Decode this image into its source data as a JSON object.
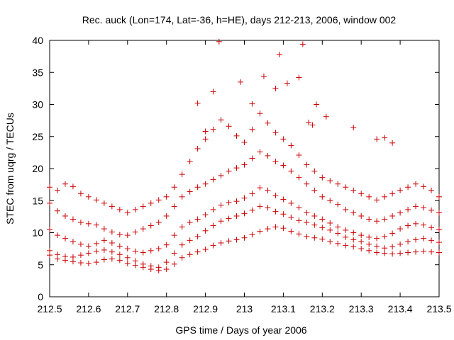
{
  "chart_data": {
    "type": "scatter",
    "title": "Rec. auck (Lon=174, Lat=-36, h=HE), days 212-213, 2006, window 002",
    "xlabel": "GPS time / Days of year 2006",
    "ylabel": "STEC from uqrg / TECUs",
    "xlim": [
      212.5,
      213.5
    ],
    "ylim": [
      0,
      40
    ],
    "xticks": [
      "212.5",
      "212.6",
      "212.7",
      "212.8",
      "212.9",
      "213",
      "213.1",
      "213.2",
      "213.3",
      "213.4",
      "213.5"
    ],
    "yticks": [
      "0",
      "5",
      "10",
      "15",
      "20",
      "25",
      "30",
      "35",
      "40"
    ],
    "grid": false,
    "legend": "none",
    "marker": "plus",
    "color": "#cc0000",
    "series": [
      {
        "x": [
          212.5,
          212.52,
          212.54,
          212.56,
          212.58,
          212.6,
          212.62,
          212.64,
          212.66,
          212.68,
          212.7,
          212.72,
          212.74,
          212.76,
          212.78,
          212.8,
          212.82,
          212.84,
          212.86,
          212.88,
          212.9,
          212.92,
          212.94,
          212.96,
          212.98,
          213.0,
          213.02,
          213.04,
          213.06,
          213.08,
          213.1,
          213.12,
          213.14,
          213.16,
          213.18,
          213.2,
          213.22,
          213.24,
          213.26,
          213.28,
          213.3,
          213.32,
          213.34,
          213.36,
          213.38,
          213.4,
          213.42,
          213.44,
          213.46,
          213.48,
          213.5
        ],
        "y": [
          6.5,
          5.9,
          5.7,
          5.5,
          5.3,
          5.2,
          5.4,
          5.8,
          5.9,
          5.7,
          5.2,
          4.9,
          4.6,
          4.3,
          4.1,
          4.3,
          5.1,
          6.1,
          6.6,
          7.0,
          7.4,
          8.0,
          8.4,
          8.7,
          8.9,
          9.2,
          9.7,
          10.2,
          10.6,
          10.9,
          10.7,
          10.2,
          9.8,
          9.4,
          9.2,
          9.0,
          8.6,
          8.3,
          8.0,
          7.8,
          7.5,
          7.2,
          6.9,
          6.8,
          6.7,
          6.8,
          6.9,
          7.0,
          7.1,
          7.0,
          6.9
        ]
      },
      {
        "x": [
          212.5,
          212.52,
          212.54,
          212.56,
          212.58,
          212.6,
          212.62,
          212.64,
          212.66,
          212.68,
          212.7,
          212.72,
          212.74,
          212.76,
          212.78,
          212.8,
          212.82,
          212.84,
          212.86,
          212.88,
          212.9,
          212.92,
          212.94,
          212.96,
          212.98,
          213.0,
          213.02,
          213.04,
          213.06,
          213.08,
          213.1,
          213.12,
          213.14,
          213.16,
          213.18,
          213.2,
          213.22,
          213.24,
          213.26,
          213.28,
          213.3,
          213.32,
          213.34,
          213.36,
          213.38,
          213.4,
          213.42,
          213.44,
          213.46,
          213.48,
          213.5
        ],
        "y": [
          7.2,
          6.6,
          6.3,
          6.2,
          6.5,
          6.8,
          7.1,
          7.3,
          7.0,
          6.6,
          6.1,
          5.6,
          5.1,
          4.8,
          4.6,
          5.4,
          6.8,
          8.1,
          8.8,
          9.4,
          10.3,
          11.1,
          11.8,
          12.2,
          12.6,
          13.0,
          13.5,
          14.1,
          13.9,
          13.3,
          12.9,
          12.4,
          11.9,
          11.6,
          11.2,
          10.8,
          10.4,
          9.9,
          9.3,
          8.9,
          8.6,
          8.2,
          7.9,
          7.6,
          7.8,
          8.2,
          8.6,
          8.9,
          9.1,
          8.8,
          8.5
        ]
      },
      {
        "x": [
          212.5,
          212.52,
          212.54,
          212.56,
          212.58,
          212.6,
          212.62,
          212.64,
          212.66,
          212.68,
          212.7,
          212.72,
          212.74,
          212.76,
          212.78,
          212.8,
          212.82,
          212.84,
          212.86,
          212.88,
          212.9,
          212.92,
          212.94,
          212.96,
          212.98,
          213.0,
          213.02,
          213.04,
          213.06,
          213.08,
          213.1,
          213.12,
          213.14,
          213.16,
          213.18,
          213.2,
          213.22,
          213.24,
          213.26,
          213.28,
          213.3,
          213.32,
          213.34,
          213.36,
          213.38,
          213.4,
          213.42,
          213.44,
          213.46,
          213.48,
          213.5
        ],
        "y": [
          10.5,
          9.6,
          9.1,
          8.6,
          8.2,
          7.9,
          8.3,
          8.8,
          8.4,
          7.9,
          7.5,
          7.1,
          6.9,
          7.2,
          7.5,
          8.1,
          9.6,
          10.9,
          11.6,
          12.1,
          12.8,
          13.6,
          14.3,
          14.7,
          14.9,
          15.4,
          16.1,
          17.0,
          16.6,
          15.8,
          15.2,
          14.6,
          13.9,
          13.1,
          12.6,
          12.1,
          11.5,
          10.9,
          10.4,
          10.0,
          9.6,
          9.3,
          9.1,
          9.4,
          9.9,
          10.6,
          11.1,
          11.4,
          11.2,
          10.8,
          10.5
        ]
      },
      {
        "x": [
          212.5,
          212.52,
          212.54,
          212.56,
          212.58,
          212.6,
          212.62,
          212.64,
          212.66,
          212.68,
          212.7,
          212.72,
          212.74,
          212.76,
          212.78,
          212.8,
          212.82,
          212.84,
          212.86,
          212.88,
          212.9,
          212.92,
          212.94,
          212.96,
          212.98,
          213.0,
          213.02,
          213.04,
          213.06,
          213.08,
          213.1,
          213.12,
          213.14,
          213.16,
          213.18,
          213.2,
          213.22,
          213.24,
          213.26,
          213.28,
          213.3,
          213.32,
          213.34,
          213.36,
          213.38,
          213.4,
          213.42,
          213.44,
          213.46,
          213.48,
          213.5
        ],
        "y": [
          14.6,
          13.4,
          12.6,
          12.1,
          11.6,
          11.4,
          11.2,
          10.6,
          10.1,
          9.7,
          9.6,
          10.1,
          10.6,
          11.1,
          11.6,
          12.6,
          14.1,
          15.6,
          16.4,
          17.1,
          17.6,
          18.3,
          18.9,
          19.6,
          20.1,
          20.6,
          21.6,
          22.6,
          22.0,
          21.1,
          20.5,
          19.6,
          18.6,
          17.6,
          16.6,
          15.6,
          15.0,
          14.4,
          13.6,
          13.1,
          12.6,
          12.1,
          11.8,
          12.1,
          12.6,
          13.1,
          13.6,
          14.1,
          13.9,
          13.5,
          13.1
        ]
      },
      {
        "x": [
          212.5,
          212.52,
          212.54,
          212.56,
          212.58,
          212.6,
          212.62,
          212.64,
          212.66,
          212.68,
          212.7,
          212.72,
          212.74,
          212.76,
          212.78,
          212.8,
          212.82,
          212.84,
          212.86,
          212.88,
          212.9,
          212.92,
          212.94,
          212.96,
          212.98,
          213.0,
          213.02,
          213.04,
          213.06,
          213.08,
          213.1,
          213.12,
          213.14,
          213.16,
          213.18,
          213.2,
          213.22,
          213.24,
          213.26,
          213.28,
          213.3,
          213.32,
          213.34,
          213.36,
          213.38,
          213.4,
          213.42,
          213.44,
          213.46,
          213.48,
          213.5
        ],
        "y": [
          17.1,
          16.6,
          17.6,
          17.2,
          16.1,
          15.6,
          15.1,
          14.6,
          14.1,
          13.6,
          13.1,
          13.6,
          14.1,
          14.6,
          15.1,
          15.6,
          17.1,
          19.1,
          21.1,
          23.1,
          24.6,
          26.1,
          27.6,
          26.6,
          25.1,
          24.1,
          26.1,
          28.6,
          27.1,
          25.6,
          24.6,
          23.6,
          22.1,
          20.6,
          19.6,
          18.6,
          18.1,
          17.6,
          17.1,
          16.6,
          16.1,
          15.6,
          15.1,
          15.6,
          16.1,
          16.6,
          17.1,
          17.6,
          17.2,
          16.6,
          15.6
        ]
      },
      {
        "x": [
          212.88,
          212.9,
          212.92,
          212.935,
          212.99,
          213.02,
          213.05,
          213.08,
          213.09,
          213.11,
          213.14,
          213.15,
          213.165,
          213.175,
          213.185,
          213.21,
          213.28,
          213.34,
          213.36,
          213.38
        ],
        "y": [
          30.2,
          25.8,
          32.0,
          39.8,
          33.5,
          30.1,
          34.4,
          32.5,
          37.8,
          33.3,
          34.2,
          39.4,
          27.2,
          26.8,
          30.0,
          28.1,
          26.4,
          24.6,
          24.8,
          24.0
        ]
      }
    ]
  }
}
